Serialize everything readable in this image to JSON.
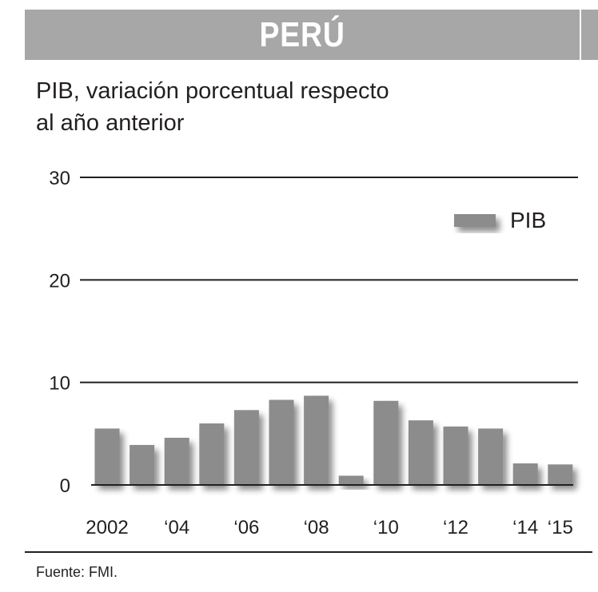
{
  "header": {
    "title": "PERÚ"
  },
  "subtitle": {
    "line1": "PIB, variación porcentual respecto",
    "line2": "al año anterior"
  },
  "footer": {
    "source": "Fuente: FMI."
  },
  "colors": {
    "banner": "#a7a7a7",
    "bar": "#8c8c8c",
    "text": "#231f20"
  },
  "chart_data": {
    "type": "bar",
    "title": "PIB, variación porcentual respecto al año anterior",
    "categories": [
      "2002",
      "2003",
      "2004",
      "2005",
      "2006",
      "2007",
      "2008",
      "2009",
      "2010",
      "2011",
      "2012",
      "2013",
      "2014",
      "2015"
    ],
    "tick_labels": [
      "2002",
      "",
      "‘04",
      "",
      "‘06",
      "",
      "‘08",
      "",
      "‘10",
      "",
      "‘12",
      "",
      "‘14",
      "‘15"
    ],
    "series": [
      {
        "name": "PIB",
        "values": [
          5.5,
          3.9,
          4.6,
          6.0,
          7.3,
          8.3,
          8.7,
          0.9,
          8.2,
          6.3,
          5.7,
          5.5,
          2.1,
          2.0
        ]
      }
    ],
    "ylim": [
      0,
      30
    ],
    "yticks": [
      0,
      10,
      20,
      30
    ],
    "grid": true,
    "legend": "top-right",
    "xlabel": "",
    "ylabel": ""
  }
}
